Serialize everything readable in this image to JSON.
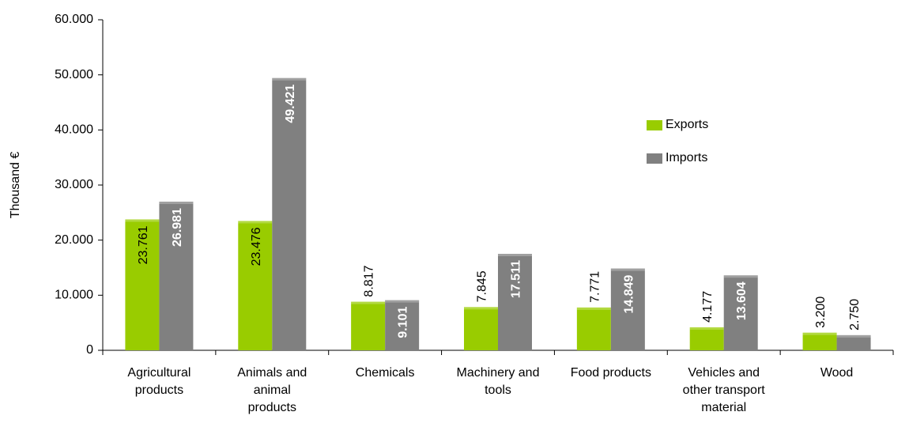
{
  "chart_data": {
    "type": "bar",
    "categories": [
      [
        "Agricultural",
        "products"
      ],
      [
        "Animals and",
        "animal",
        "products"
      ],
      [
        "Chemicals"
      ],
      [
        "Machinery and",
        "tools"
      ],
      [
        "Food products"
      ],
      [
        "Vehicles and",
        "other transport",
        "material"
      ],
      [
        "Wood"
      ]
    ],
    "series": [
      {
        "name": "Exports",
        "color": "#99CC00",
        "values": [
          23761,
          23476,
          8817,
          7845,
          7771,
          4177,
          3200
        ],
        "labels": [
          "23.761",
          "23.476",
          "8.817",
          "7.845",
          "7.771",
          "4.177",
          "3.200"
        ],
        "label_inside": [
          true,
          true,
          false,
          false,
          false,
          false,
          false
        ]
      },
      {
        "name": "Imports",
        "color": "#808080",
        "values": [
          26981,
          49421,
          9101,
          17511,
          14849,
          13604,
          2750
        ],
        "labels": [
          "26.981",
          "49.421",
          "9.101",
          "17.511",
          "14.849",
          "13.604",
          "2.750"
        ],
        "label_inside": [
          true,
          true,
          true,
          true,
          true,
          true,
          false
        ]
      }
    ],
    "ylabel": "Thousand €",
    "ylim": [
      0,
      60000
    ],
    "yticks": [
      0,
      10000,
      20000,
      30000,
      40000,
      50000,
      60000
    ],
    "ytick_labels": [
      "0",
      "10.000",
      "20.000",
      "30.000",
      "40.000",
      "50.000",
      "60.000"
    ],
    "grid": false,
    "legend_position": "right"
  }
}
